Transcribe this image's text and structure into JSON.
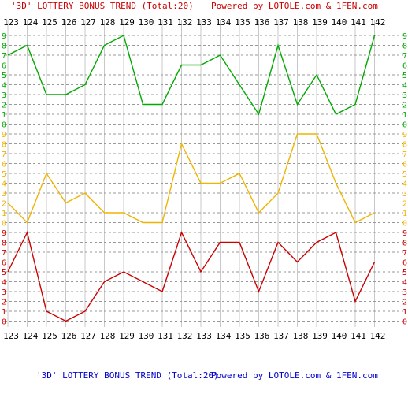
{
  "header": {
    "title": "'3D' LOTTERY BONUS TREND (Total:20)",
    "credit": "Powered by LOTOLE.com & 1FEN.com"
  },
  "footer": {
    "title": "'3D' LOTTERY BONUS TREND (Total:20)",
    "credit": "Powered by LOTOLE.com & 1FEN.com"
  },
  "chart_data": {
    "type": "line",
    "title": "'3D' LOTTERY BONUS TREND (Total:20)",
    "x": [
      "123",
      "124",
      "125",
      "126",
      "127",
      "128",
      "129",
      "130",
      "131",
      "132",
      "133",
      "134",
      "135",
      "136",
      "137",
      "138",
      "139",
      "140",
      "141",
      "142"
    ],
    "digit_labels": [
      "0",
      "1",
      "2",
      "3",
      "4",
      "5",
      "6",
      "7",
      "8",
      "9"
    ],
    "series": [
      {
        "color": "#00aa00",
        "values": [
          7,
          8,
          3,
          3,
          4,
          8,
          9,
          2,
          2,
          6,
          6,
          7,
          4,
          1,
          8,
          2,
          5,
          1,
          2,
          9
        ]
      },
      {
        "color": "#f0b400",
        "values": [
          2,
          0,
          5,
          2,
          3,
          1,
          1,
          0,
          0,
          8,
          4,
          4,
          5,
          1,
          3,
          9,
          9,
          4,
          0,
          1
        ]
      },
      {
        "color": "#cc0000",
        "values": [
          5,
          9,
          1,
          0,
          1,
          4,
          5,
          4,
          3,
          9,
          5,
          8,
          8,
          3,
          8,
          6,
          8,
          9,
          2,
          6
        ]
      }
    ],
    "ylim": [
      0,
      9
    ],
    "grid": true
  }
}
